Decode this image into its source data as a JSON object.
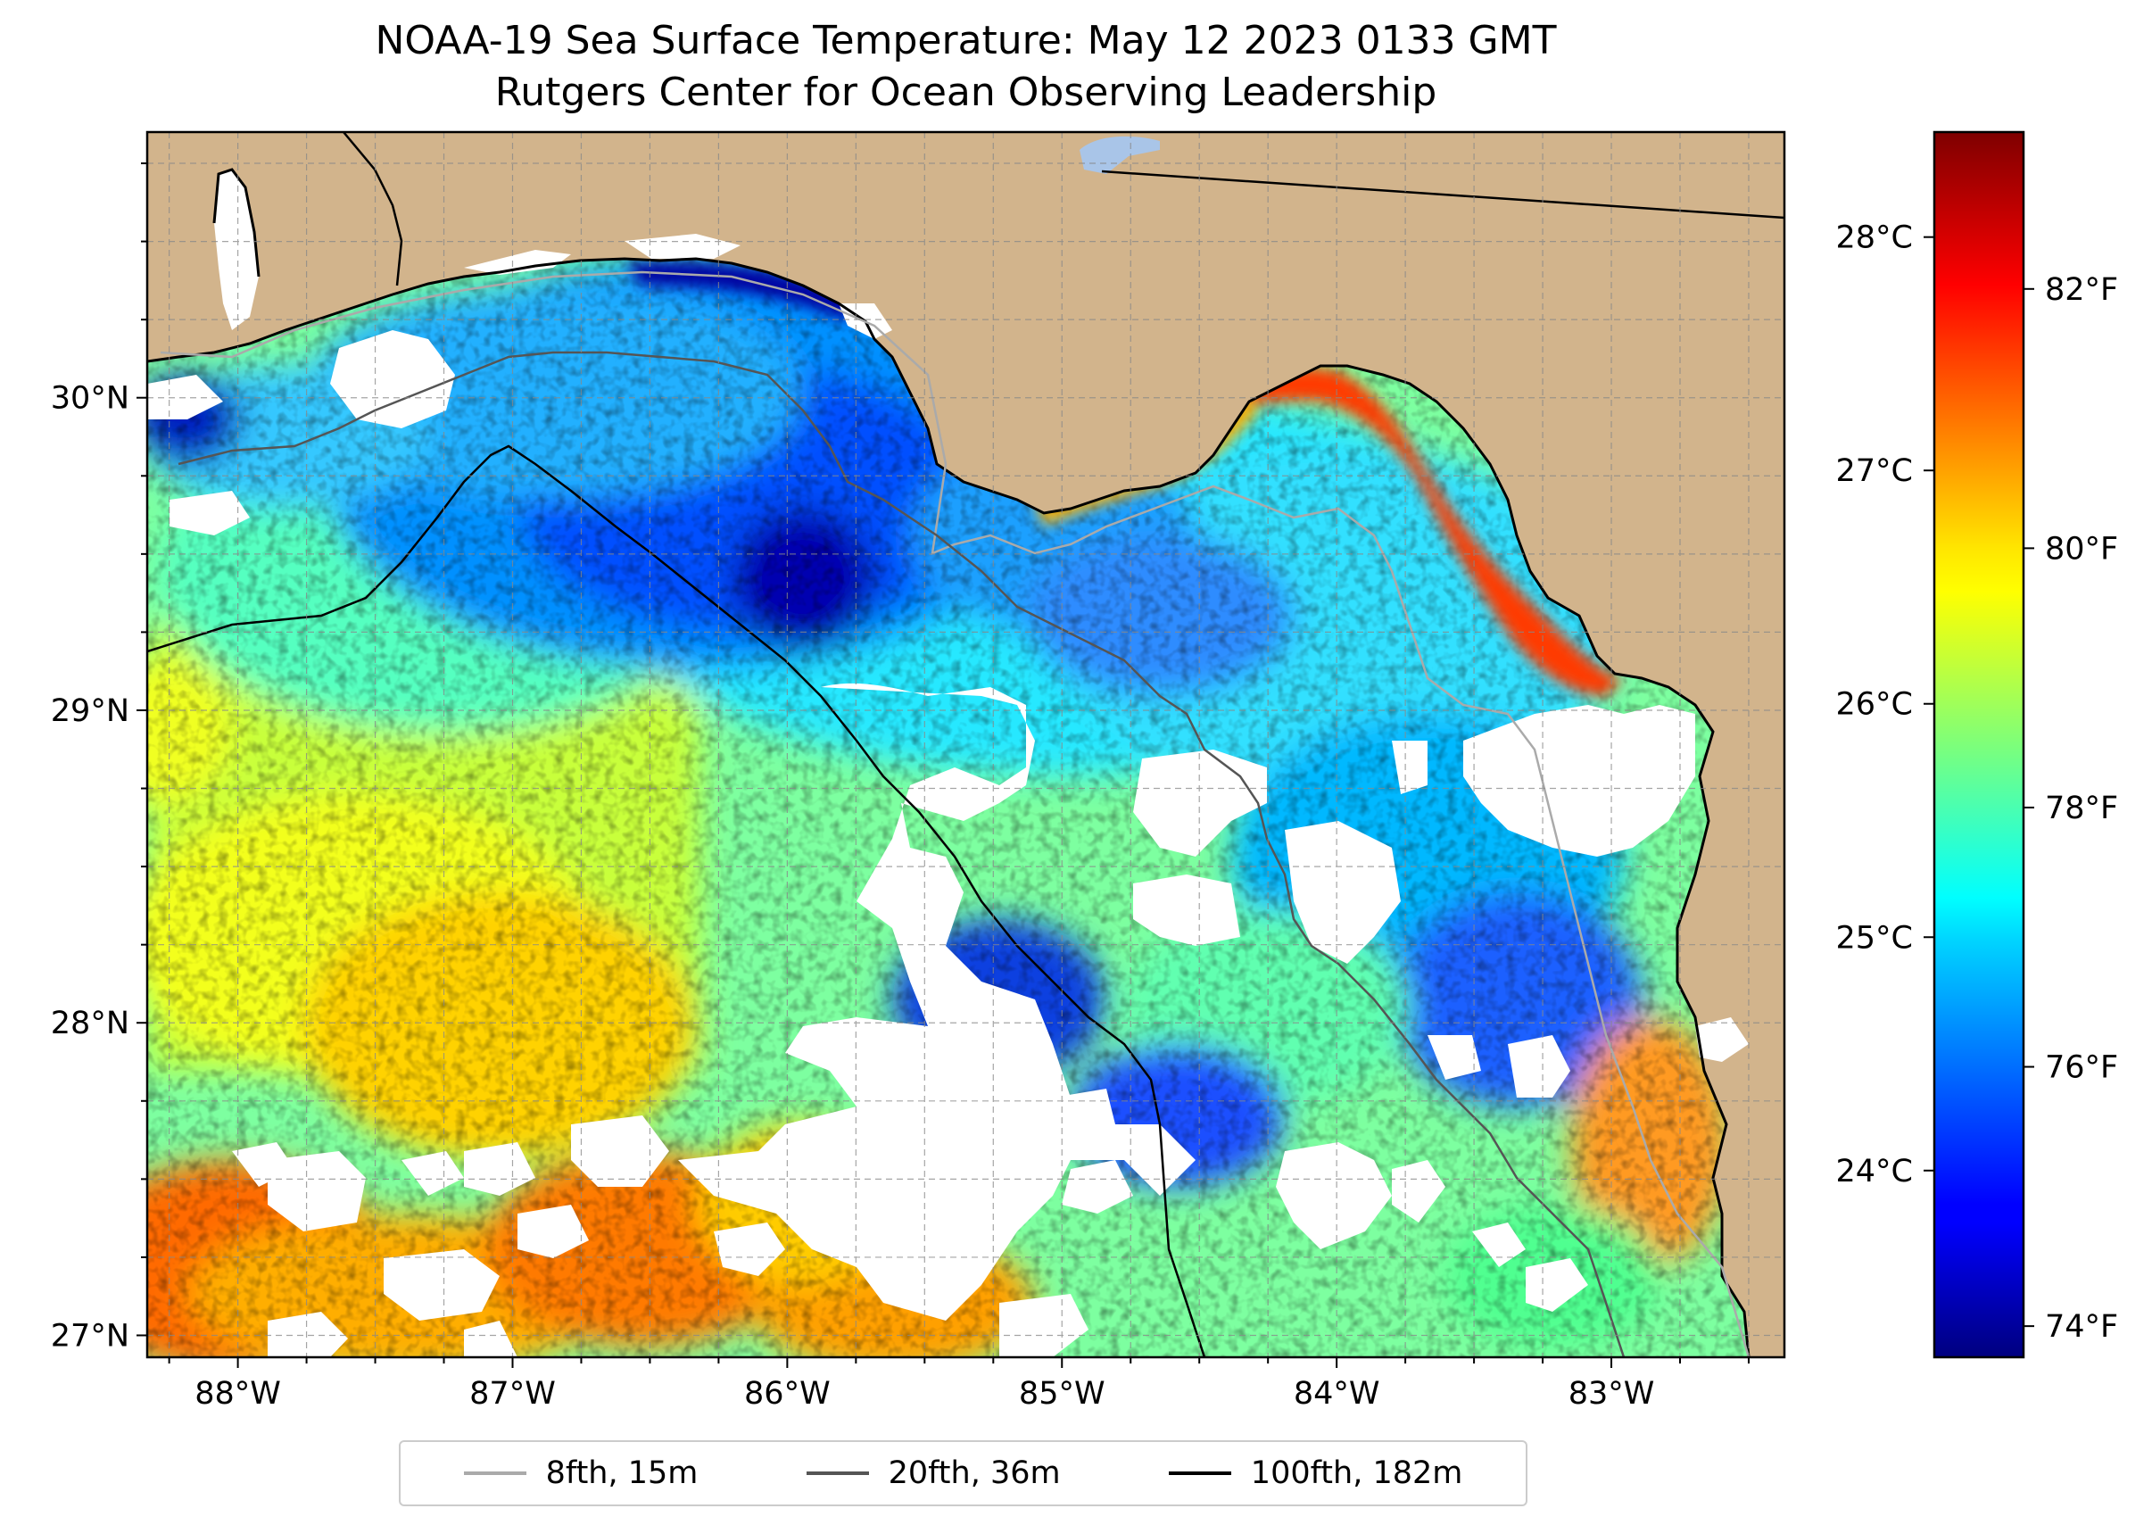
{
  "title_line1": "NOAA-19 Sea Surface Temperature: May 12 2023 0133 GMT",
  "title_line2": "Rutgers Center for Ocean Observing Leadership",
  "map": {
    "lon_range": [
      -88.33,
      -82.37
    ],
    "lat_range": [
      26.93,
      30.85
    ],
    "lon_ticks": [
      {
        "value": -88,
        "label": "88°W"
      },
      {
        "value": -87,
        "label": "87°W"
      },
      {
        "value": -86,
        "label": "86°W"
      },
      {
        "value": -85,
        "label": "85°W"
      },
      {
        "value": -84,
        "label": "84°W"
      },
      {
        "value": -83,
        "label": "83°W"
      }
    ],
    "lat_ticks": [
      {
        "value": 27,
        "label": "27°N"
      },
      {
        "value": 28,
        "label": "28°N"
      },
      {
        "value": 29,
        "label": "29°N"
      },
      {
        "value": 30,
        "label": "30°N"
      }
    ],
    "gridlines": true,
    "land_color": "#d2b48c",
    "cloud_color": "#ffffff",
    "lake_color": "#a9c5e8"
  },
  "colorbar": {
    "colormap": "jet",
    "range_c": [
      23.2,
      28.45
    ],
    "celsius_ticks": [
      {
        "value": 24,
        "label": "24°C"
      },
      {
        "value": 25,
        "label": "25°C"
      },
      {
        "value": 26,
        "label": "26°C"
      },
      {
        "value": 27,
        "label": "27°C"
      },
      {
        "value": 28,
        "label": "28°C"
      }
    ],
    "fahrenheit_ticks": [
      {
        "value": 74,
        "label": "74°F"
      },
      {
        "value": 76,
        "label": "76°F"
      },
      {
        "value": 78,
        "label": "78°F"
      },
      {
        "value": 80,
        "label": "80°F"
      },
      {
        "value": 82,
        "label": "82°F"
      }
    ]
  },
  "legend": {
    "items": [
      {
        "label": "8fth, 15m",
        "color": "#aaaaaa"
      },
      {
        "label": "20fth, 36m",
        "color": "#555555"
      },
      {
        "label": "100fth, 182m",
        "color": "#000000"
      }
    ]
  }
}
